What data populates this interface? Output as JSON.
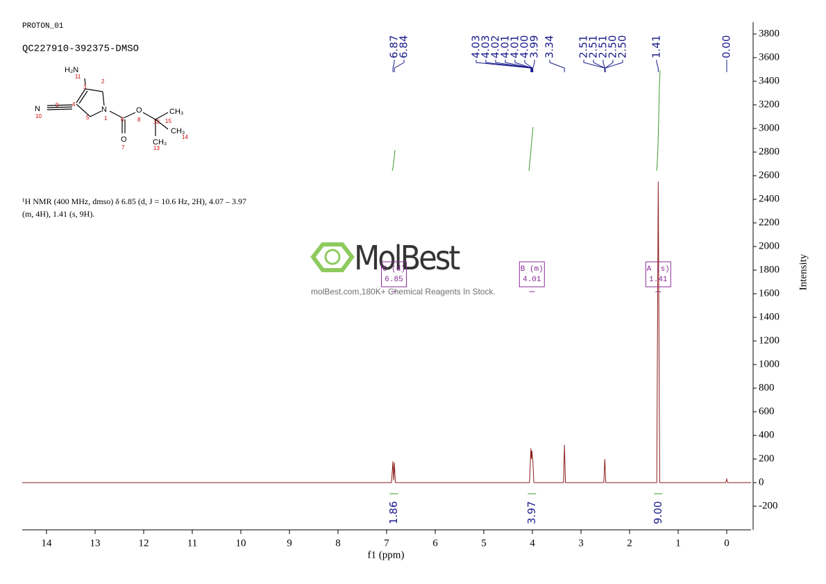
{
  "header": {
    "experiment": "PROTON_01",
    "sample": "QC227910-392375-DMSO"
  },
  "molecule": {
    "atoms": [
      "H₂N",
      "N",
      "N",
      "O",
      "O",
      "CH₃",
      "CH₃",
      "CH₃"
    ],
    "numbers": [
      "11",
      "3",
      "2",
      "4",
      "5",
      "1",
      "9",
      "10",
      "6",
      "7",
      "8",
      "12",
      "15",
      "14",
      "13"
    ]
  },
  "description": [
    "¹H NMR (400 MHz, dmso) δ 6.85 (d, J = 10.6 Hz, 2H), 4.07 – 3.97",
    "(m, 4H), 1.41 (s, 9H)."
  ],
  "watermark": {
    "brand": "MolBest",
    "tagline": "molBest.com,180K+ Chemical Reagents In Stock."
  },
  "chart_data": {
    "type": "line",
    "xlabel": "f1 (ppm)",
    "ylabel": "Intensity",
    "color": "#8b1a1a",
    "y_axis_side": "right",
    "xlim": [
      14.5,
      -0.5
    ],
    "xticks": [
      14,
      13,
      12,
      11,
      10,
      9,
      8,
      7,
      6,
      5,
      4,
      3,
      2,
      1,
      0
    ],
    "ylim": [
      -400,
      3900
    ],
    "yticks": [
      -200,
      0,
      200,
      400,
      600,
      800,
      1000,
      1200,
      1400,
      1600,
      1800,
      2000,
      2200,
      2400,
      2600,
      2800,
      3000,
      3200,
      3400,
      3600,
      3800
    ],
    "x": [
      14.5,
      6.9,
      6.87,
      6.855,
      6.84,
      6.82,
      4.06,
      4.03,
      4.02,
      4.01,
      4.0,
      3.99,
      3.97,
      3.36,
      3.34,
      3.32,
      2.53,
      2.51,
      2.49,
      1.44,
      1.41,
      1.38,
      0.02,
      0.0,
      -0.02,
      -0.5
    ],
    "values": [
      0,
      0,
      180,
      20,
      170,
      0,
      0,
      290,
      200,
      270,
      220,
      180,
      0,
      0,
      320,
      0,
      0,
      200,
      0,
      0,
      2550,
      0,
      0,
      30,
      0,
      0
    ],
    "peak_labels": [
      "6.87",
      "6.84",
      "4.03",
      "4.03",
      "4.02",
      "4.01",
      "4.01",
      "4.00",
      "3.99",
      "3.34",
      "2.51",
      "2.51",
      "2.51",
      "2.50",
      "2.50",
      "1.41",
      "0.00"
    ],
    "integrals": [
      {
        "ppm": 6.85,
        "label": "1.86"
      },
      {
        "ppm": 4.01,
        "label": "3.97"
      },
      {
        "ppm": 1.41,
        "label": "9.00"
      }
    ],
    "multiplets": [
      {
        "name": "C (d)",
        "shift": "6.85",
        "ppm": 6.85
      },
      {
        "name": "B (m)",
        "shift": "4.01",
        "ppm": 4.01
      },
      {
        "name": "A (s)",
        "shift": "1.41",
        "ppm": 1.41
      }
    ]
  }
}
